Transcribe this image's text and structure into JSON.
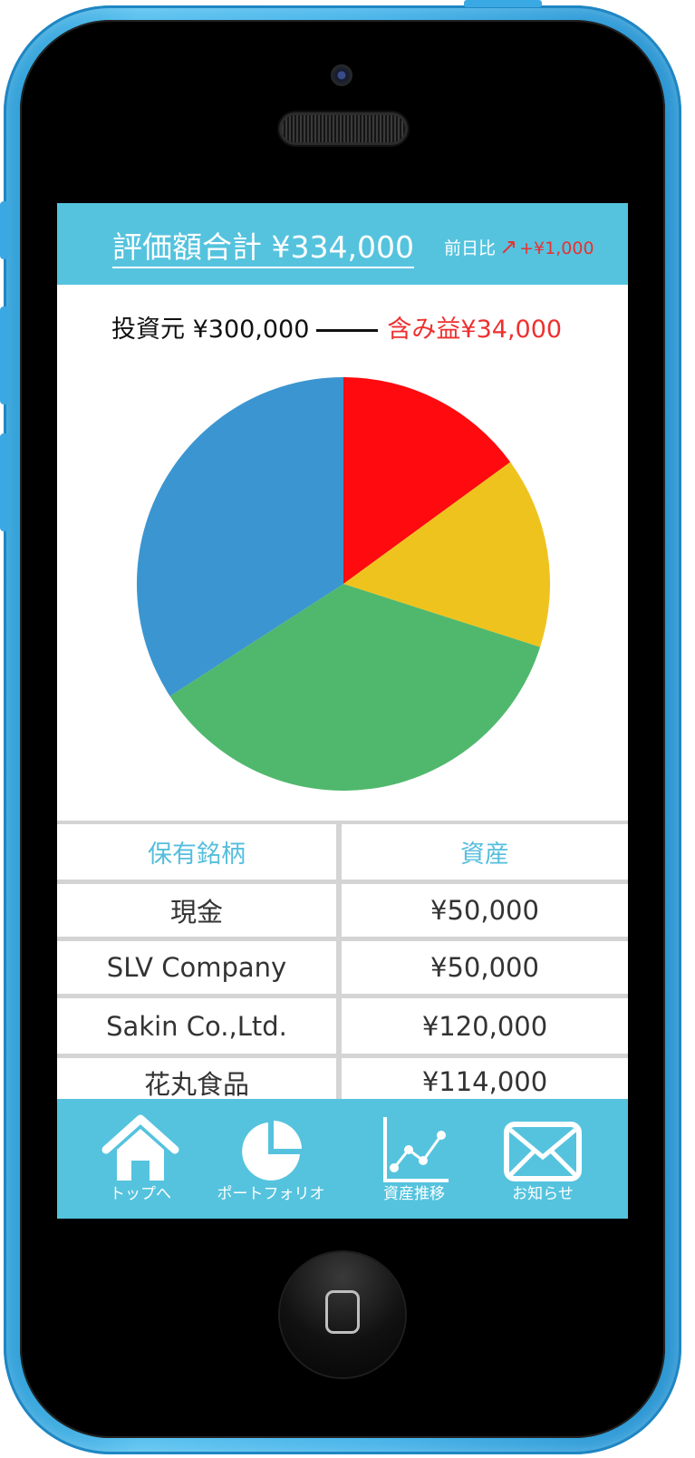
{
  "header": {
    "total_label": "評価額合計  ¥334,000",
    "prev_day_label": "前日比",
    "prev_day_delta": "+¥1,000"
  },
  "summary": {
    "principal": "投資元 ¥300,000",
    "unrealized_gain": "含み益¥34,000"
  },
  "chart_data": {
    "type": "pie",
    "slices": [
      {
        "label": "現金",
        "value": 50000,
        "color": "#ff0a0e"
      },
      {
        "label": "SLV Company",
        "value": 50000,
        "color": "#efc31e"
      },
      {
        "label": "Sakin Co.,Ltd.",
        "value": 120000,
        "color": "#50b86d"
      },
      {
        "label": "花丸食品",
        "value": 114000,
        "color": "#3b95d0"
      }
    ]
  },
  "table": {
    "headers": [
      "保有銘柄",
      "資産"
    ],
    "rows": [
      [
        "現金",
        "¥50,000"
      ],
      [
        "SLV Company",
        "¥50,000"
      ],
      [
        "Sakin Co.,Ltd.",
        "¥120,000"
      ],
      [
        "花丸食品",
        "¥114,000"
      ]
    ]
  },
  "nav": [
    {
      "label": "トップへ",
      "icon": "home-icon"
    },
    {
      "label": "ポートフォリオ",
      "icon": "pie-chart-icon"
    },
    {
      "label": "資産推移",
      "icon": "line-chart-icon"
    },
    {
      "label": "お知らせ",
      "icon": "mail-icon"
    }
  ],
  "colors": {
    "accent": "#55c3de",
    "gain": "#ee3030",
    "phone_shell": "#4ab5ea"
  }
}
